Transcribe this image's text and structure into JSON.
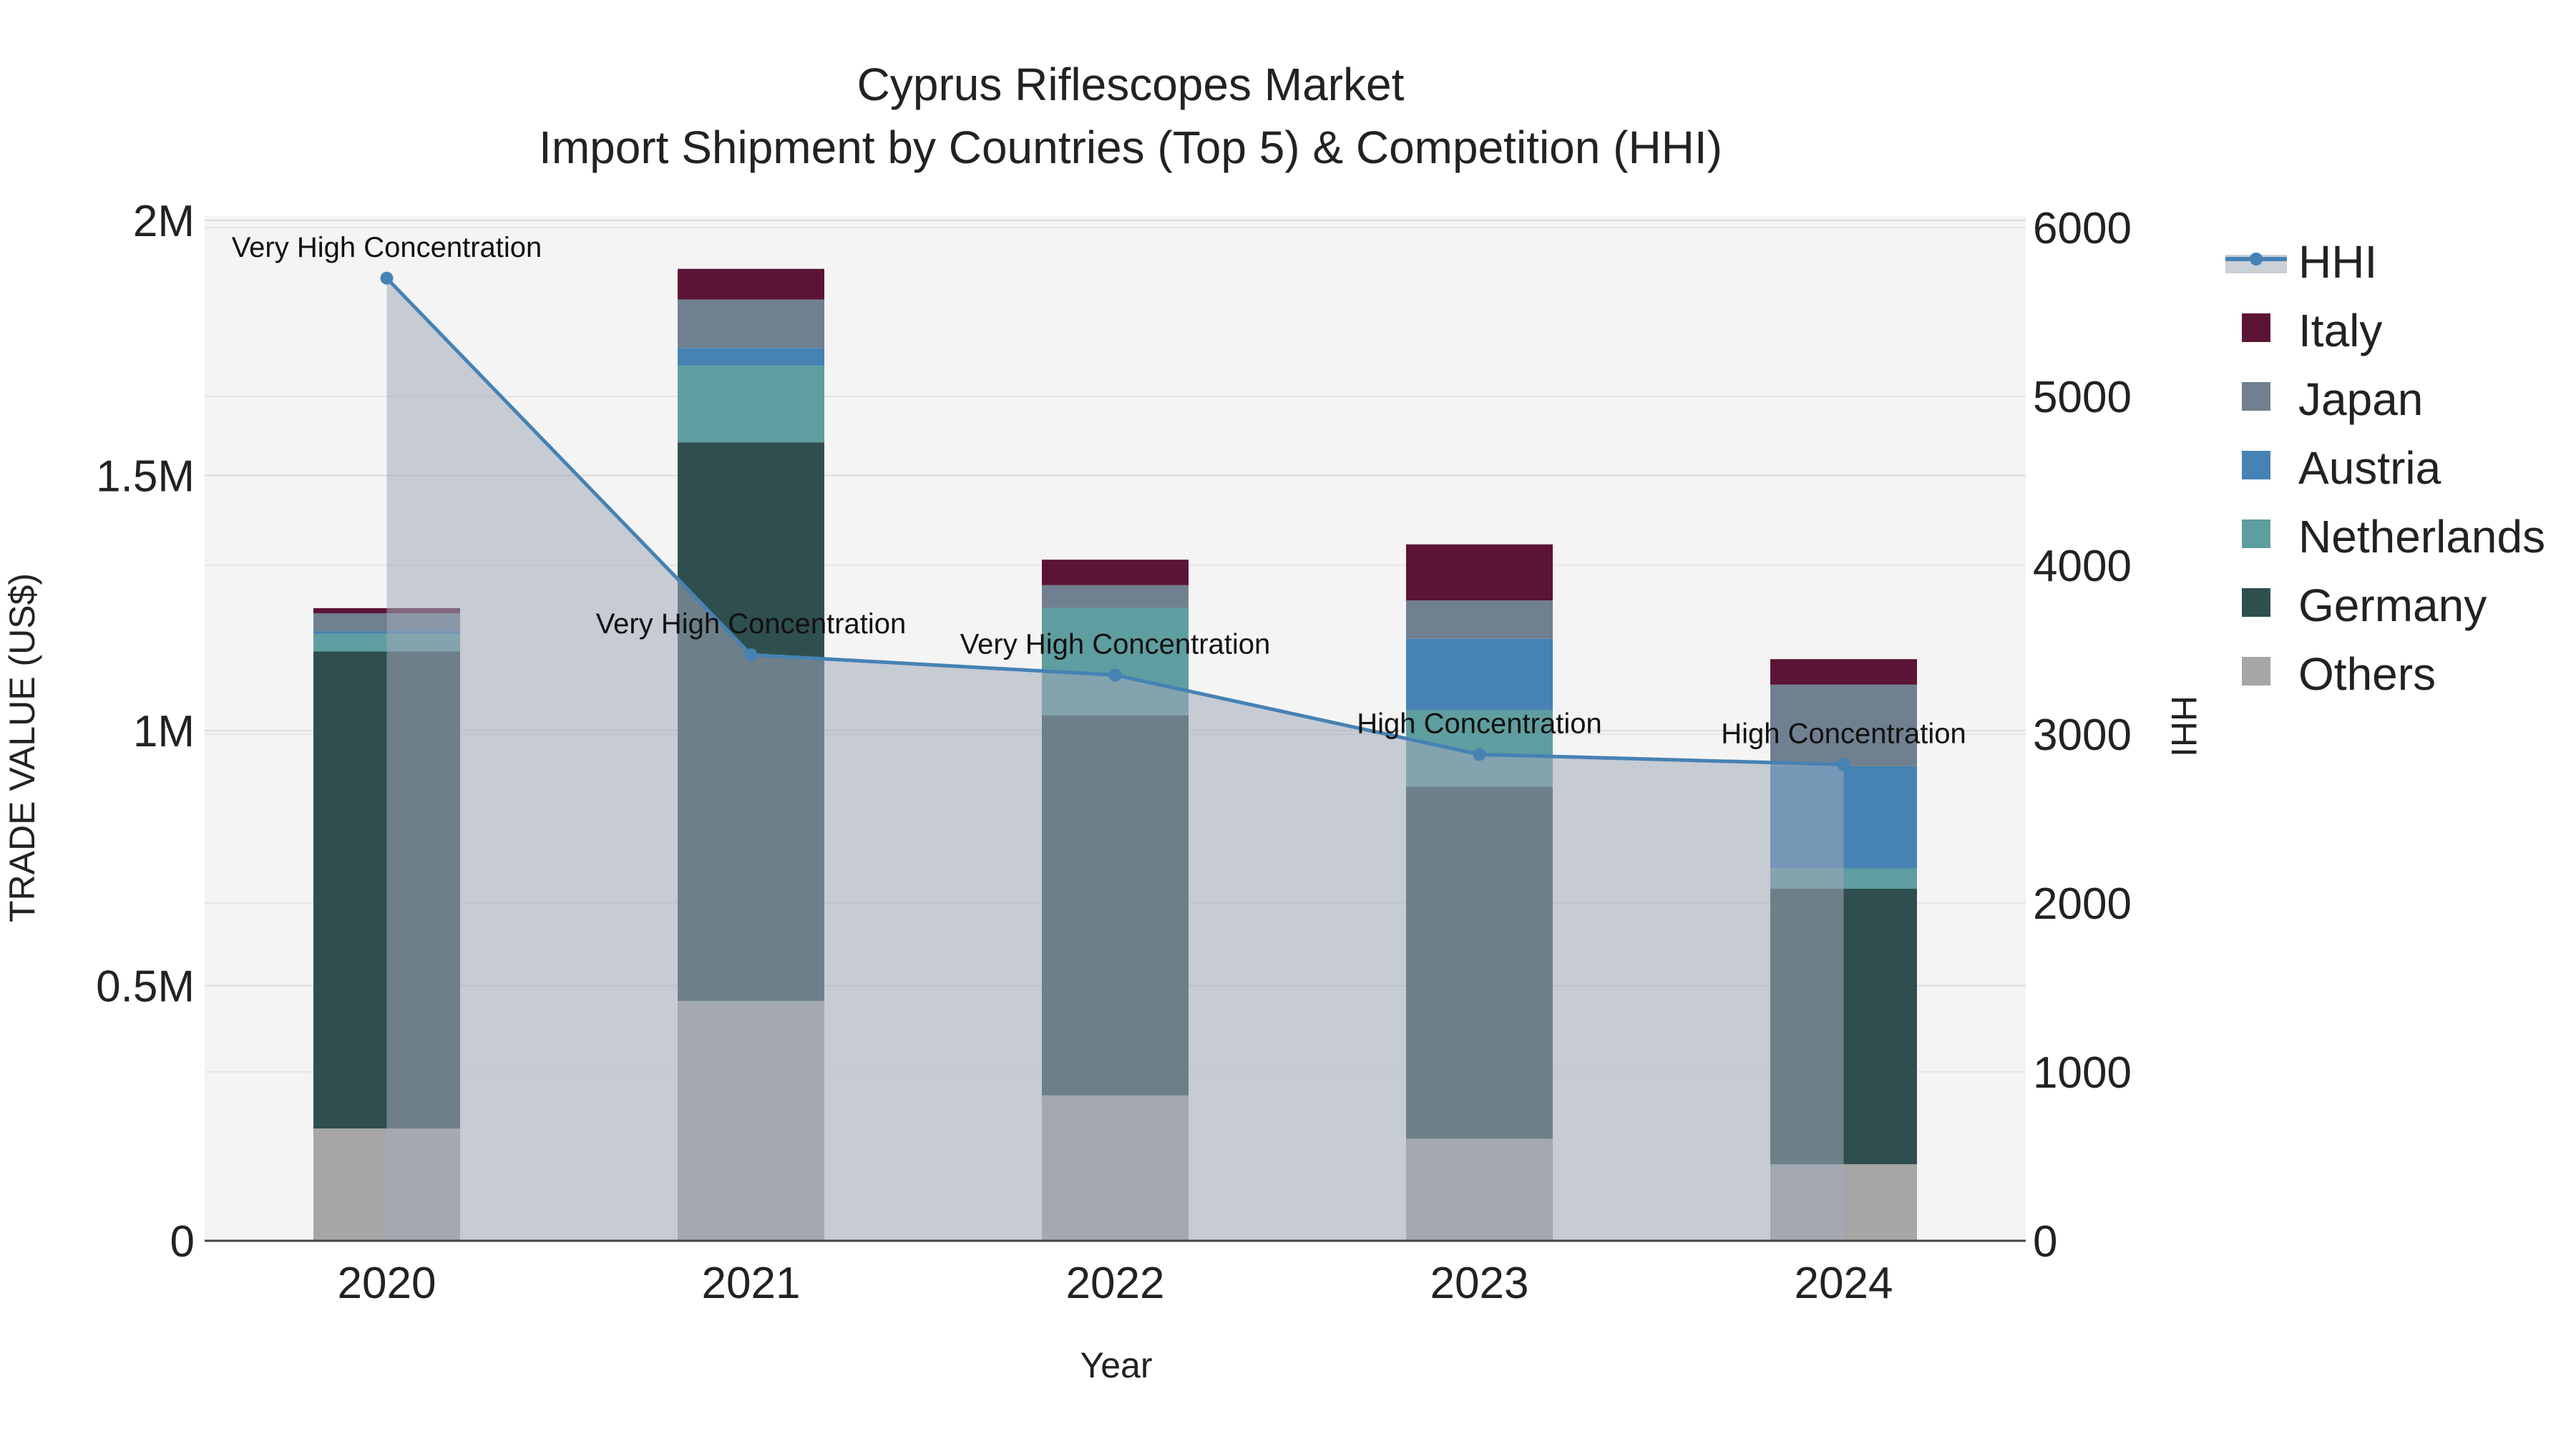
{
  "chart_data": {
    "type": "bar",
    "title_line1": "Cyprus Riflescopes Market",
    "title_line2": "Import Shipment by Countries (Top 5) & Competition (HHI)",
    "xlabel": "Year",
    "ylabel": "TRADE VALUE (US$)",
    "y2label": "HHI",
    "categories": [
      "2020",
      "2021",
      "2022",
      "2023",
      "2024"
    ],
    "ylim": [
      0,
      2000000
    ],
    "y2lim": [
      0,
      6000
    ],
    "y_ticks": [
      0,
      500000,
      1000000,
      1500000,
      2000000
    ],
    "y_tick_labels": [
      "0",
      "0.5M",
      "1M",
      "1.5M",
      "2M"
    ],
    "y2_ticks": [
      0,
      1000,
      2000,
      3000,
      4000,
      5000,
      6000
    ],
    "y2_tick_labels": [
      "0",
      "1000",
      "2000",
      "3000",
      "4000",
      "5000",
      "6000"
    ],
    "series": [
      {
        "name": "Others",
        "color": "#a6a6a6",
        "values": [
          220000,
          470000,
          285000,
          200000,
          150000
        ]
      },
      {
        "name": "Germany",
        "color": "#2f4f4f",
        "values": [
          935000,
          1095000,
          745000,
          690000,
          540000
        ]
      },
      {
        "name": "Netherlands",
        "color": "#5f9ea0",
        "values": [
          35000,
          150000,
          210000,
          150000,
          40000
        ]
      },
      {
        "name": "Austria",
        "color": "#4682b4",
        "values": [
          5000,
          35000,
          0,
          140000,
          200000
        ]
      },
      {
        "name": "Japan",
        "color": "#708090",
        "values": [
          35000,
          95000,
          45000,
          75000,
          160000
        ]
      },
      {
        "name": "Italy",
        "color": "#5c1436",
        "values": [
          10000,
          60000,
          50000,
          110000,
          50000
        ]
      }
    ],
    "hhi": {
      "name": "HHI",
      "color": "#4682b4",
      "fill": "rgba(160,170,185,0.55)",
      "values": [
        5700,
        3470,
        3350,
        2880,
        2820
      ],
      "annotations": [
        "Very High Concentration",
        "Very High Concentration",
        "Very High Concentration",
        "High Concentration",
        "High Concentration"
      ]
    },
    "legend_order": [
      "HHI",
      "Italy",
      "Japan",
      "Austria",
      "Netherlands",
      "Germany",
      "Others"
    ],
    "legend_position": "right"
  }
}
